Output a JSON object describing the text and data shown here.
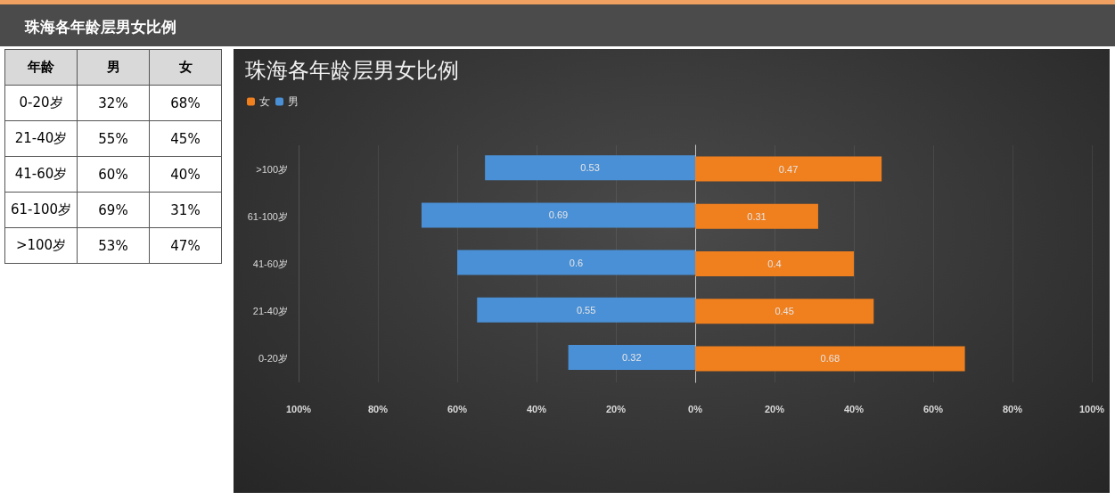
{
  "chart_data": [
    {
      "type": "other",
      "title": "珠海各年龄层男女比例",
      "xlabel": "年龄",
      "categories": [
        "0-20岁",
        "21-40岁",
        "41-60岁",
        "61-100岁",
        ">100岁"
      ],
      "series": [
        {
          "name": "男",
          "values": [
            32,
            55,
            60,
            69,
            53
          ],
          "value_labels": [
            "32%",
            "55%",
            "60%",
            "69%",
            "53%"
          ]
        },
        {
          "name": "女",
          "values": [
            68,
            45,
            40,
            31,
            47
          ],
          "value_labels": [
            "68%",
            "45%",
            "40%",
            "31%",
            "47%"
          ]
        }
      ]
    },
    {
      "type": "bar",
      "orientation": "horizontal",
      "title": "珠海各年龄层男女比例",
      "categories": [
        ">100岁",
        "61-100岁",
        "41-60岁",
        "21-40岁",
        "0-20岁"
      ],
      "series": [
        {
          "name": "男",
          "color": "#4a90d6",
          "values": [
            0.53,
            0.69,
            0.6,
            0.55,
            0.32
          ]
        }
      ],
      "xlim": [
        1,
        0
      ],
      "xticks": [
        {
          "value": 1,
          "label": "100%"
        },
        {
          "value": 0.8,
          "label": "80%"
        },
        {
          "value": 0.6,
          "label": "60%"
        },
        {
          "value": 0.4,
          "label": "40%"
        },
        {
          "value": 0.2,
          "label": "20%"
        },
        {
          "value": 0,
          "label": "0%"
        }
      ],
      "data_labels": true,
      "grid": "x",
      "legend": "top left"
    },
    {
      "type": "bar",
      "orientation": "horizontal",
      "categories": [
        null,
        null,
        null,
        null,
        null
      ],
      "series": [
        {
          "name": "女",
          "color": "#f07f1e",
          "values": [
            0.47,
            0.31,
            0.4,
            0.45,
            0.68
          ]
        }
      ],
      "xlim": [
        0,
        1
      ],
      "xticks": [
        {
          "value": 0,
          "label": null
        },
        {
          "value": 0.2,
          "label": "20%"
        },
        {
          "value": 0.4,
          "label": "40%"
        },
        {
          "value": 0.6,
          "label": "60%"
        },
        {
          "value": 0.8,
          "label": "80%"
        },
        {
          "value": 1,
          "label": "100%"
        }
      ],
      "data_labels": true,
      "grid": "x",
      "tick_labels": "x"
    }
  ]
}
